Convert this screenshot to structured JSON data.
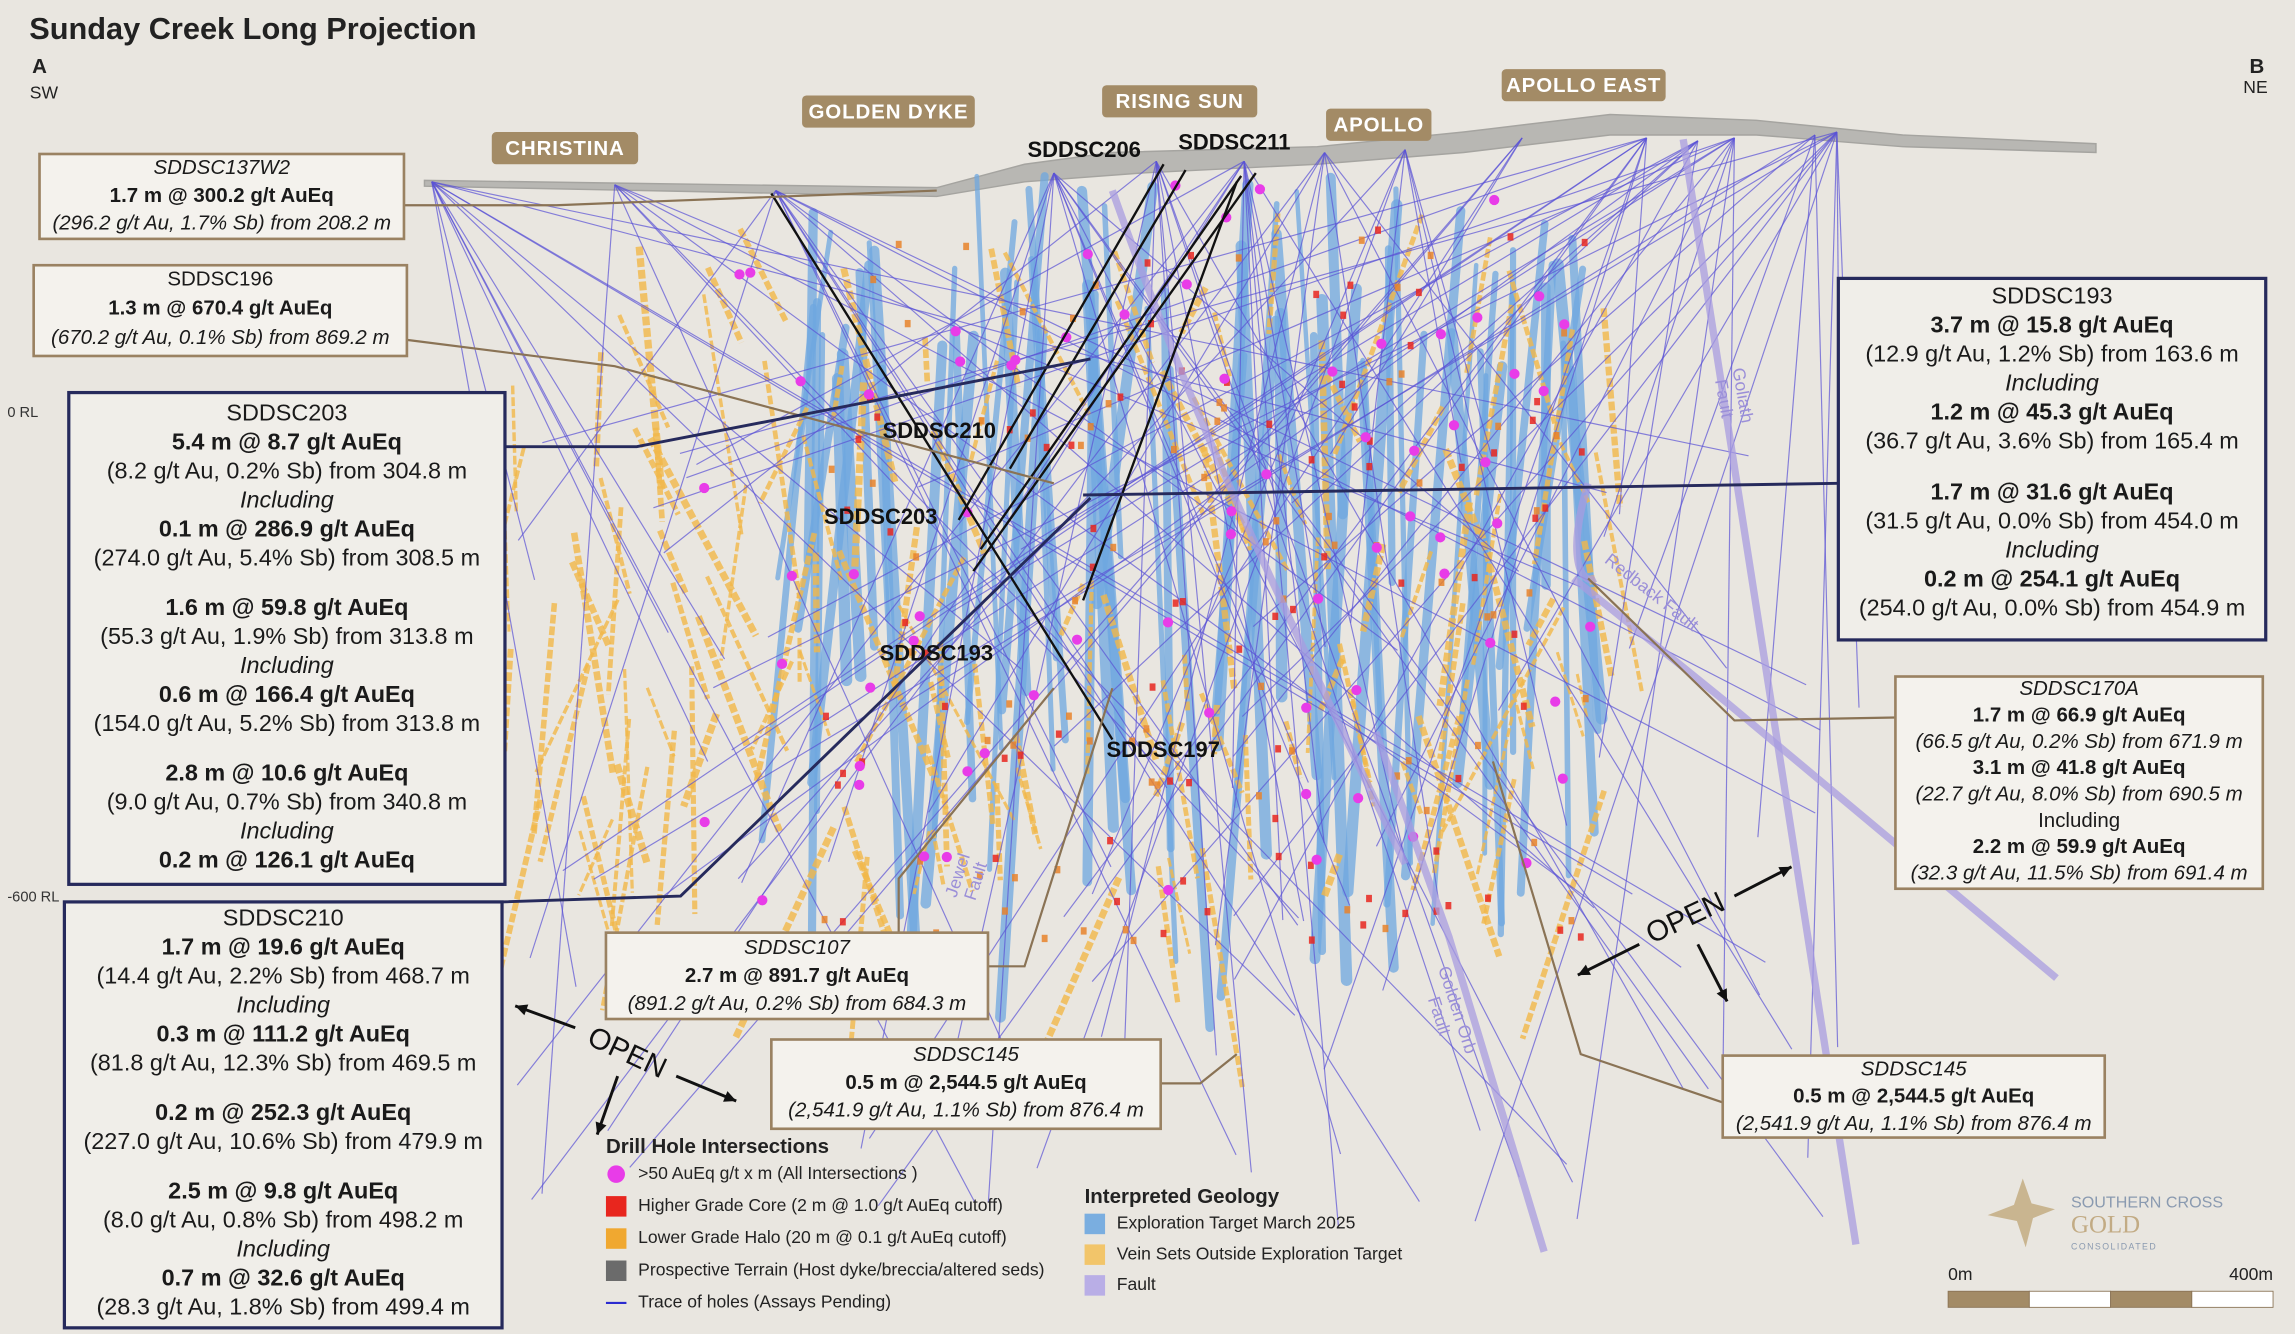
{
  "title": "Sunday Creek Long Projection",
  "section_ends": [
    {
      "letter": "A",
      "direction": "SW"
    },
    {
      "letter": "B",
      "direction": "NE"
    }
  ],
  "rl_labels": [
    "0 RL",
    "-600 RL"
  ],
  "prospects": [
    "CHRISTINA",
    "GOLDEN DYKE",
    "RISING SUN",
    "APOLLO",
    "APOLLO EAST"
  ],
  "hole_labels": [
    "SDDSC206",
    "SDDSC211",
    "SDDSC210",
    "SDDSC203",
    "SDDSC193",
    "SDDSC197"
  ],
  "faults": [
    {
      "lines": [
        "Goliath",
        "Fault"
      ]
    },
    {
      "lines": [
        "Redback Fault"
      ]
    },
    {
      "lines": [
        "Jewel",
        "Fault"
      ]
    },
    {
      "lines": [
        "Golden Orb",
        "Fault"
      ]
    }
  ],
  "open_labels": [
    "OPEN",
    "OPEN"
  ],
  "callouts": [
    {
      "blocks": [
        [
          {
            "text": "SDDSC137W2",
            "style": "italic"
          },
          {
            "text": "1.7 m @ 300.2 g/t AuEq",
            "style": "bold"
          },
          {
            "text": "(296.2 g/t Au, 1.7% Sb) from 208.2 m",
            "style": "italic"
          }
        ]
      ]
    },
    {
      "blocks": [
        [
          {
            "text": "SDDSC196",
            "style": "normal"
          },
          {
            "text": "1.3 m @ 670.4 g/t AuEq",
            "style": "bold"
          },
          {
            "text": "(670.2 g/t Au, 0.1% Sb) from 869.2 m",
            "style": "italic"
          }
        ]
      ]
    },
    {
      "blocks": [
        [
          {
            "text": "SDDSC203",
            "style": "normal"
          },
          {
            "text": "5.4 m @ 8.7 g/t AuEq",
            "style": "bold"
          },
          {
            "text": "(8.2 g/t Au, 0.2% Sb) from 304.8 m",
            "style": "normal"
          },
          {
            "text": "Including",
            "style": "italic"
          },
          {
            "text": "0.1 m @ 286.9 g/t AuEq",
            "style": "bold"
          },
          {
            "text": "(274.0 g/t Au, 5.4% Sb) from 308.5 m",
            "style": "normal"
          }
        ],
        [
          {
            "text": "1.6 m @ 59.8 g/t AuEq",
            "style": "bold"
          },
          {
            "text": "(55.3 g/t Au, 1.9% Sb) from 313.8 m",
            "style": "normal"
          },
          {
            "text": "Including",
            "style": "italic"
          },
          {
            "text": "0.6 m @ 166.4 g/t AuEq",
            "style": "bold"
          },
          {
            "text": "(154.0 g/t Au, 5.2% Sb) from 313.8 m",
            "style": "normal"
          }
        ],
        [
          {
            "text": "2.8 m @ 10.6 g/t AuEq",
            "style": "bold"
          },
          {
            "text": "(9.0 g/t Au, 0.7% Sb) from 340.8 m",
            "style": "normal"
          },
          {
            "text": "Including",
            "style": "italic"
          },
          {
            "text": "0.2 m @ 126.1 g/t AuEq",
            "style": "bold"
          }
        ]
      ]
    },
    {
      "blocks": [
        [
          {
            "text": "SDDSC210",
            "style": "normal"
          },
          {
            "text": "1.7 m @ 19.6 g/t AuEq",
            "style": "bold"
          },
          {
            "text": "(14.4 g/t Au, 2.2% Sb) from 468.7 m",
            "style": "normal"
          },
          {
            "text": "Including",
            "style": "italic"
          },
          {
            "text": "0.3 m @ 111.2 g/t AuEq",
            "style": "bold"
          },
          {
            "text": "(81.8 g/t Au, 12.3% Sb) from 469.5 m",
            "style": "normal"
          }
        ],
        [
          {
            "text": "0.2 m @ 252.3 g/t AuEq",
            "style": "bold"
          },
          {
            "text": "(227.0 g/t Au, 10.6% Sb) from 479.9 m",
            "style": "normal"
          }
        ],
        [
          {
            "text": "2.5 m @ 9.8 g/t AuEq",
            "style": "bold"
          },
          {
            "text": "(8.0 g/t Au, 0.8% Sb) from 498.2 m",
            "style": "normal"
          },
          {
            "text": "Including",
            "style": "italic"
          },
          {
            "text": "0.7 m @ 32.6 g/t AuEq",
            "style": "bold"
          },
          {
            "text": "(28.3 g/t Au, 1.8% Sb) from 499.4 m",
            "style": "normal"
          }
        ]
      ]
    },
    {
      "blocks": [
        [
          {
            "text": "SDDSC193",
            "style": "normal"
          },
          {
            "text": "3.7 m @ 15.8 g/t AuEq",
            "style": "bold"
          },
          {
            "text": "(12.9 g/t Au, 1.2% Sb) from 163.6 m",
            "style": "normal"
          },
          {
            "text": "Including",
            "style": "italic"
          },
          {
            "text": "1.2 m @ 45.3 g/t AuEq",
            "style": "bold"
          },
          {
            "text": "(36.7 g/t Au, 3.6% Sb) from 165.4 m",
            "style": "normal"
          }
        ],
        [
          {
            "text": "1.7 m @ 31.6 g/t AuEq",
            "style": "bold"
          },
          {
            "text": "(31.5 g/t Au, 0.0% Sb) from 454.0 m",
            "style": "normal"
          },
          {
            "text": "Including",
            "style": "italic"
          },
          {
            "text": "0.2 m @ 254.1 g/t AuEq",
            "style": "bold"
          },
          {
            "text": "(254.0 g/t Au, 0.0% Sb) from 454.9 m",
            "style": "normal"
          }
        ]
      ]
    },
    {
      "blocks": [
        [
          {
            "text": "SDDSC170A",
            "style": "italic"
          },
          {
            "text": "1.7 m @ 66.9 g/t AuEq",
            "style": "bold"
          },
          {
            "text": "(66.5 g/t Au, 0.2% Sb) from 671.9 m",
            "style": "italic"
          },
          {
            "text": "3.1 m @ 41.8 g/t AuEq",
            "style": "bold"
          },
          {
            "text": "(22.7 g/t Au, 8.0% Sb) from 690.5 m",
            "style": "italic"
          },
          {
            "text": "Including",
            "style": "normal"
          },
          {
            "text": "2.2 m @ 59.9 g/t AuEq",
            "style": "bold"
          },
          {
            "text": "(32.3 g/t Au, 11.5% Sb) from 691.4 m",
            "style": "italic"
          }
        ]
      ]
    },
    {
      "blocks": [
        [
          {
            "text": "SDDSC107",
            "style": "italic"
          },
          {
            "text": "2.7 m @ 891.7 g/t AuEq",
            "style": "bold"
          },
          {
            "text": "(891.2 g/t Au, 0.2% Sb) from 684.3 m",
            "style": "italic"
          }
        ]
      ]
    },
    {
      "blocks": [
        [
          {
            "text": "SDDSC145",
            "style": "italic"
          },
          {
            "text": "0.5 m @ 2,544.5 g/t AuEq",
            "style": "bold"
          },
          {
            "text": "(2,541.9 g/t Au, 1.1% Sb) from 876.4 m",
            "style": "italic"
          }
        ]
      ]
    },
    {
      "blocks": [
        [
          {
            "text": "SDDSC145",
            "style": "italic"
          },
          {
            "text": "0.5 m @ 2,544.5 g/t AuEq",
            "style": "bold"
          },
          {
            "text": "(2,541.9 g/t Au, 1.1% Sb) from 876.4 m",
            "style": "italic"
          }
        ]
      ]
    }
  ],
  "legend_intersections": {
    "title": "Drill Hole Intersections",
    "items": [
      {
        "label": ">50 AuEq g/t x m (All Intersections )",
        "marker": "circle",
        "color": "#e83ce8"
      },
      {
        "label": "Higher Grade Core (2 m @ 1.0 g/t AuEq cutoff)",
        "marker": "square",
        "color": "#e8261e"
      },
      {
        "label": "Lower Grade Halo (20 m @ 0.1 g/t AuEq cutoff)",
        "marker": "square",
        "color": "#f0a830"
      },
      {
        "label": "Prospective Terrain (Host dyke/breccia/altered seds)",
        "marker": "square",
        "color": "#6b6b6b"
      },
      {
        "label": "Trace of holes (Assays Pending)",
        "marker": "line",
        "color": "#2b2bd0"
      }
    ]
  },
  "legend_geology": {
    "title": "Interpreted Geology",
    "items": [
      {
        "label": "Exploration Target March 2025",
        "marker": "square",
        "color": "#7aaee0"
      },
      {
        "label": "Vein Sets Outside Exploration Target",
        "marker": "square",
        "color": "#f2c56a"
      },
      {
        "label": "Fault",
        "marker": "square",
        "color": "#b9aee6"
      }
    ]
  },
  "logo": [
    "SOUTHERN CROSS",
    "GOLD",
    "CONSOLIDATED"
  ],
  "scale_bar": [
    "0m",
    "400m"
  ]
}
